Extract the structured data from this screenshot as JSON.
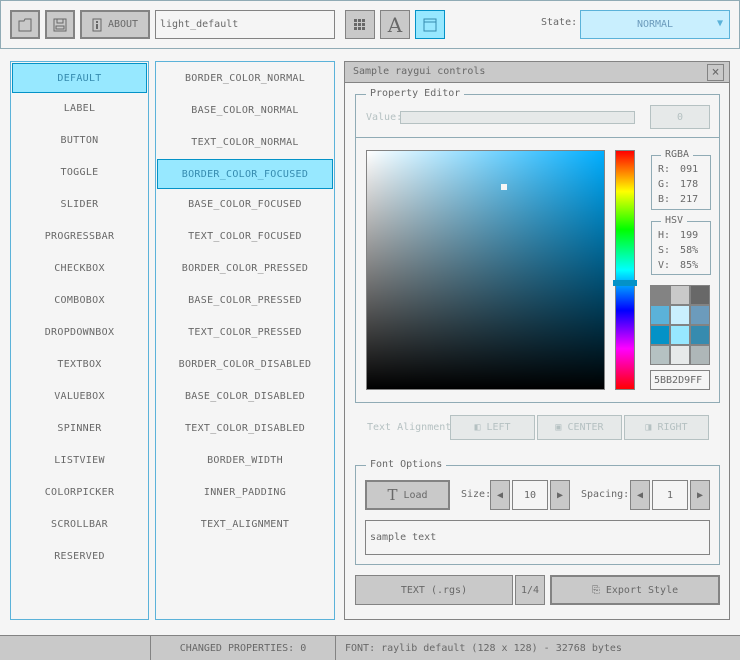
{
  "toolbar": {
    "about_label": "ABOUT",
    "style_name": "light_default",
    "state_label": "State:",
    "state_value": "NORMAL"
  },
  "controls_list": [
    "DEFAULT",
    "LABEL",
    "BUTTON",
    "TOGGLE",
    "SLIDER",
    "PROGRESSBAR",
    "CHECKBOX",
    "COMBOBOX",
    "DROPDOWNBOX",
    "TEXTBOX",
    "VALUEBOX",
    "SPINNER",
    "LISTVIEW",
    "COLORPICKER",
    "SCROLLBAR",
    "RESERVED"
  ],
  "properties_list": [
    "BORDER_COLOR_NORMAL",
    "BASE_COLOR_NORMAL",
    "TEXT_COLOR_NORMAL",
    "BORDER_COLOR_FOCUSED",
    "BASE_COLOR_FOCUSED",
    "TEXT_COLOR_FOCUSED",
    "BORDER_COLOR_PRESSED",
    "BASE_COLOR_PRESSED",
    "TEXT_COLOR_PRESSED",
    "BORDER_COLOR_DISABLED",
    "BASE_COLOR_DISABLED",
    "TEXT_COLOR_DISABLED",
    "BORDER_WIDTH",
    "INNER_PADDING",
    "TEXT_ALIGNMENT"
  ],
  "window": {
    "title": "Sample raygui controls",
    "close": "×"
  },
  "property_editor": {
    "title": "Property Editor",
    "value_label": "Value:",
    "value": "0",
    "color": {
      "hue": 199,
      "saturation": 0.58,
      "value": 0.85,
      "hex": "5BB2D9FF",
      "rgba_title": "RGBA",
      "r_label": "R:",
      "r": "091",
      "g_label": "G:",
      "g": "178",
      "b_label": "B:",
      "b": "217",
      "hsv_title": "HSV",
      "h_label": "H:",
      "h": "199",
      "s_label": "S:",
      "s": "58%",
      "v_label": "V:",
      "v": "85%",
      "swatches": [
        "#838383",
        "#c9c9c9",
        "#686868",
        "#5bb2d9",
        "#c9effe",
        "#6c9bbc",
        "#0492c7",
        "#97e8ff",
        "#368baf",
        "#b5c1c2",
        "#e6e9e9",
        "#aeb7b8"
      ]
    },
    "align_label": "Text Alignment:",
    "align_left": "LEFT",
    "align_center": "CENTER",
    "align_right": "RIGHT"
  },
  "font_options": {
    "title": "Font Options",
    "load": "Load",
    "size_label": "Size:",
    "size": "10",
    "spacing_label": "Spacing:",
    "spacing": "1",
    "sample_text": "sample text"
  },
  "bottom": {
    "text_button": "TEXT (.rgs)",
    "page": "1/4",
    "export": "Export Style"
  },
  "status": {
    "left": "",
    "changed": "CHANGED PROPERTIES: 0",
    "font": "FONT: raylib default (128 x 128) - 32768 bytes"
  }
}
